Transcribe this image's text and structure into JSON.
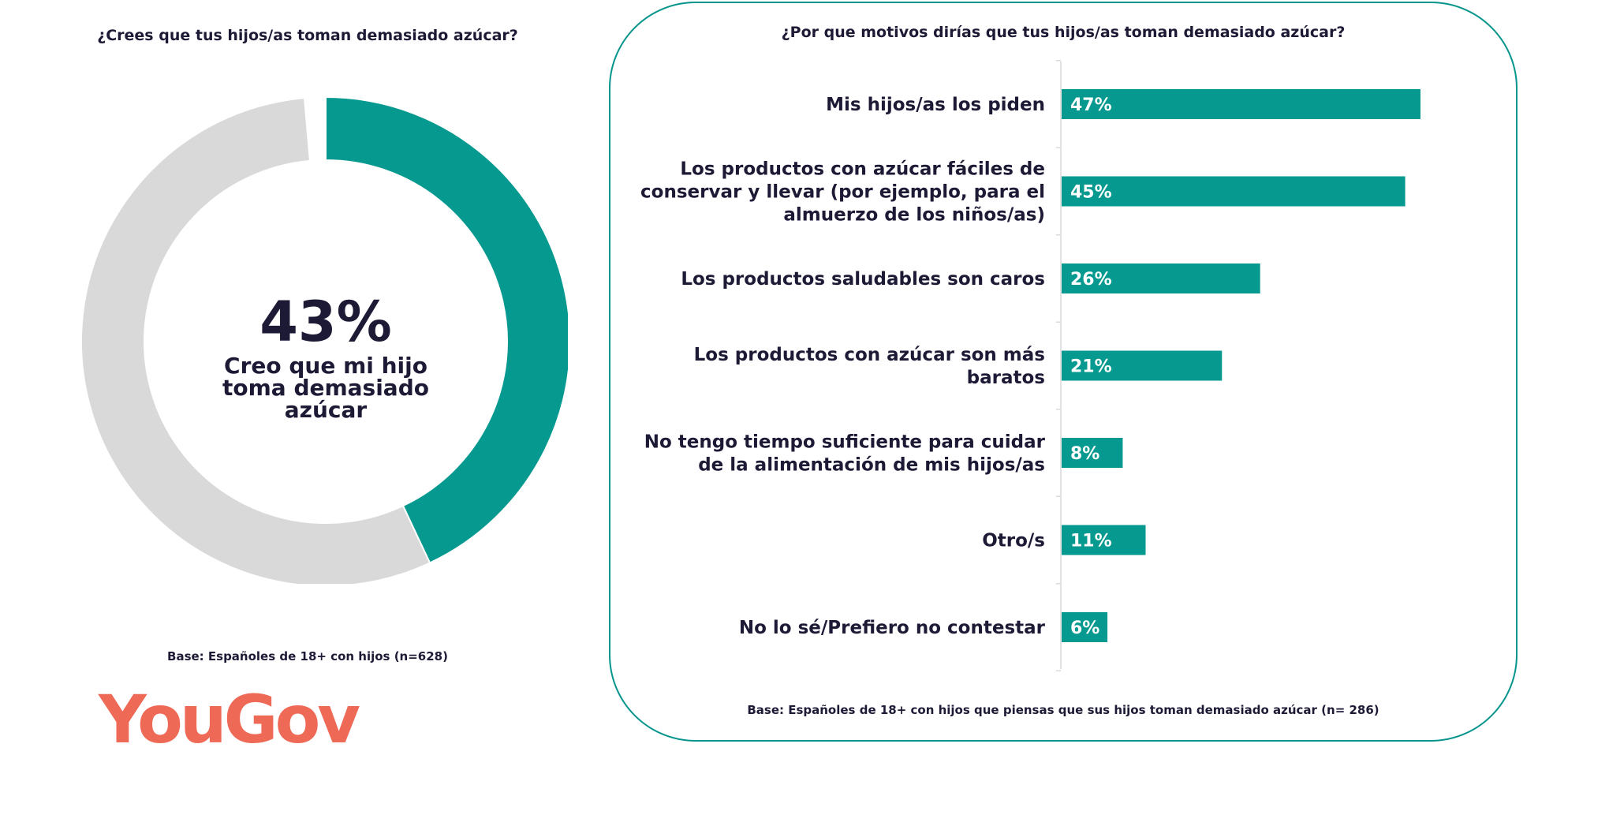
{
  "left": {
    "title": "¿Crees que tus hijos/as toman demasiado azúcar?",
    "donut_value": "43%",
    "donut_label": "Creo que mi hijo toma demasiado azúcar",
    "base": "Base: Españoles de 18+ con hijos (n=628)"
  },
  "right": {
    "title": "¿Por que motivos dirías que tus hijos/as toman demasiado azúcar?",
    "base": "Base: Españoles de 18+ con hijos que piensas que sus hijos toman demasiado azúcar (n= 286)"
  },
  "logo": {
    "text": "YouGov"
  },
  "colors": {
    "accent": "#06998f",
    "remainder": "#d9d9d9",
    "text": "#1d1a36",
    "logo": "#ee6a57",
    "panel_border": "#06958c"
  },
  "chart_data": [
    {
      "type": "pie",
      "title": "¿Crees que tus hijos/as toman demasiado azúcar?",
      "categories": [
        "Creo que mi hijo toma demasiado azúcar",
        ""
      ],
      "values": [
        43,
        57
      ],
      "units": "%"
    },
    {
      "type": "bar",
      "orientation": "horizontal",
      "title": "¿Por que motivos dirías que tus hijos/as toman demasiado azúcar?",
      "categories": [
        [
          "Mis hijos/as los piden"
        ],
        [
          "Los productos con azúcar fáciles de",
          "conservar y llevar (por ejemplo, para el",
          "almuerzo de los niños/as)"
        ],
        [
          "Los productos saludables son caros"
        ],
        [
          "Los productos con azúcar son más",
          "baratos"
        ],
        [
          "No tengo tiempo suficiente para cuidar",
          "de la alimentación de mis hijos/as"
        ],
        [
          "Otro/s"
        ],
        [
          "No lo sé/Prefiero no contestar"
        ]
      ],
      "values": [
        47,
        45,
        26,
        21,
        8,
        11,
        6
      ],
      "labels": [
        "47%",
        "45%",
        "26%",
        "21%",
        "8%",
        "11%",
        "6%"
      ],
      "xlim": [
        0,
        60
      ],
      "units": "%"
    }
  ]
}
